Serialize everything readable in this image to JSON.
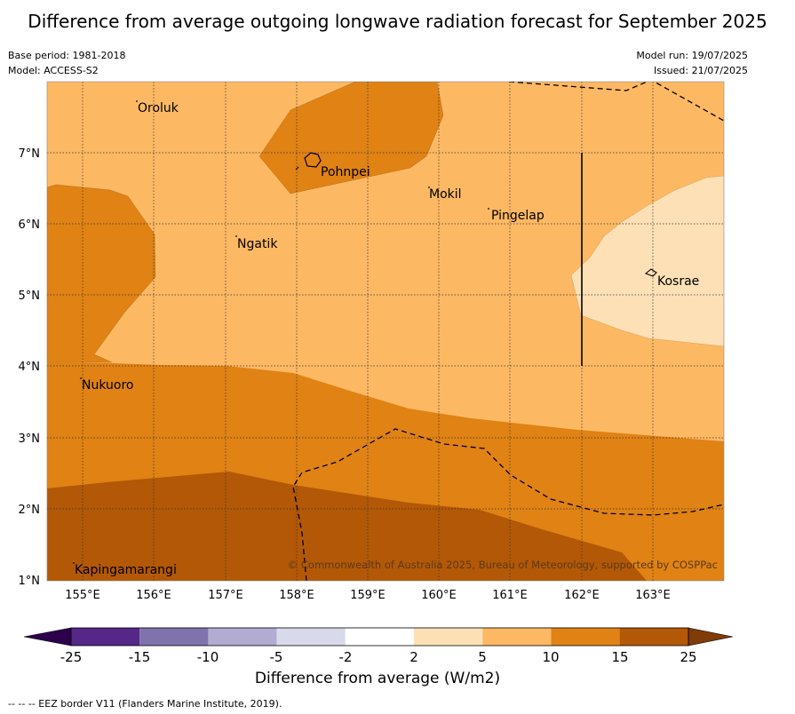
{
  "title": "Difference from average outgoing longwave radiation forecast for September 2025",
  "base_period": "Base period: 1981-2018",
  "model": "Model: ACCESS-S2",
  "model_run": "Model run: 19/07/2025",
  "issued": "Issued: 21/07/2025",
  "copyright": "© Commonwealth of Australia 2025, Bureau of Meteorology, supported by COSPPac",
  "x_ticks": [
    "155°E",
    "156°E",
    "157°E",
    "158°E",
    "159°E",
    "160°E",
    "161°E",
    "162°E",
    "163°E"
  ],
  "y_ticks": [
    "7°N",
    "6°N",
    "5°N",
    "4°N",
    "3°N",
    "2°N",
    "1°N"
  ],
  "places": [
    "Oroluk",
    "Pohnpei",
    "Mokil",
    "Pingelap",
    "Ngatik",
    "Kosrae",
    "Nukuoro",
    "Kapingamarangi"
  ],
  "colorbar": {
    "ticks": [
      "-25",
      "-15",
      "-10",
      "-5",
      "-2",
      "2",
      "5",
      "10",
      "15",
      "25"
    ],
    "colors": [
      "#542788",
      "#8073ac",
      "#b2abd2",
      "#d8daeb",
      "#ffffff",
      "#fee0b6",
      "#fdb863",
      "#e08214",
      "#b35806"
    ],
    "extend_low_color": "#2d004b",
    "extend_high_color": "#7f3b08",
    "label": "Difference from average (W/m2)"
  },
  "legend_note": "-- -- -- EEZ border V11 (Flanders Marine Institute, 2019).",
  "colors": {
    "band_2_5": "#fee0b6",
    "band_5_10": "#fdb863",
    "band_10_15": "#e08214",
    "band_15_25": "#b35806"
  }
}
